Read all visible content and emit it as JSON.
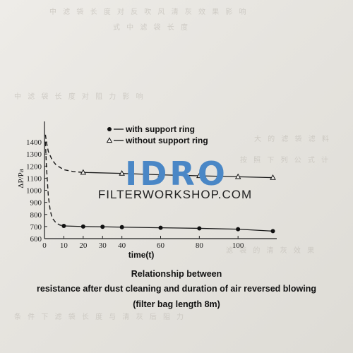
{
  "chart_data": {
    "type": "line",
    "title_lines": [
      "Relationship between",
      "resistance after dust cleaning and duration of air reversed blowing",
      "(filter bag length 8m)"
    ],
    "xlabel": "time(t)",
    "ylabel": "ΔP/Pa",
    "xlim": [
      0,
      120
    ],
    "ylim": [
      600,
      1500
    ],
    "xticks": [
      "0",
      "10",
      "20",
      "30",
      "40",
      "60",
      "80",
      "100"
    ],
    "yticks": [
      "600",
      "700",
      "800",
      "900",
      "1000",
      "1100",
      "1200",
      "1300",
      "1400"
    ],
    "grid": false,
    "legend_position": "top-left",
    "series": [
      {
        "name": "with support ring",
        "marker": "filled-circle",
        "x": [
          10,
          20,
          30,
          40,
          60,
          80,
          100,
          118
        ],
        "y": [
          705,
          700,
          698,
          695,
          690,
          685,
          678,
          662
        ],
        "curve_x": [
          0.5,
          1,
          2,
          3,
          4,
          6,
          8,
          10
        ],
        "curve_y": [
          1400,
          1200,
          950,
          830,
          770,
          730,
          712,
          705
        ]
      },
      {
        "name": "without support ring",
        "marker": "open-triangle",
        "x": [
          20,
          40,
          60,
          80,
          100,
          118
        ],
        "y": [
          1148,
          1140,
          1128,
          1120,
          1112,
          1105
        ],
        "curve_x": [
          0.5,
          1,
          2,
          4,
          6,
          10,
          15,
          20
        ],
        "curve_y": [
          1460,
          1400,
          1320,
          1250,
          1210,
          1170,
          1155,
          1148
        ]
      }
    ]
  },
  "watermark": {
    "brand": "IDRO",
    "site": "FILTERWORKSHOP.COM",
    "brand_color": "#4a87c6"
  }
}
